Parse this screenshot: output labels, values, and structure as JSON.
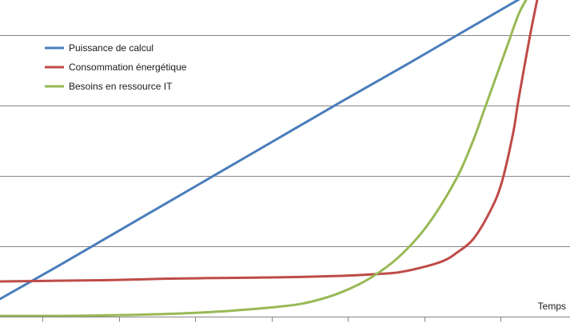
{
  "chart_data": {
    "type": "line",
    "title": "",
    "xlabel": "Temps",
    "ylabel": "",
    "grid": true,
    "legend": {
      "placement": "top-left",
      "entries": [
        {
          "name": "Puissance de calcul",
          "color": "#4a7ebb"
        },
        {
          "name": "Consommation énergétique",
          "color": "#be4b48"
        },
        {
          "name": "Besoins en ressource IT",
          "color": "#98b954"
        }
      ]
    },
    "xlim": [
      0,
      10
    ],
    "ylim": [
      0,
      4.5
    ],
    "x_tick_count": 10,
    "y_gridlines": [
      1,
      2,
      3,
      4
    ],
    "series": [
      {
        "name": "Puissance de calcul",
        "color": "#4a7ebb",
        "x": [
          0,
          1,
          2,
          3,
          4,
          5,
          6,
          7,
          8,
          9,
          9.3
        ],
        "y": [
          0.25,
          0.71,
          1.18,
          1.65,
          2.12,
          2.59,
          3.06,
          3.52,
          3.99,
          4.46,
          4.6
        ]
      },
      {
        "name": "Consommation énergétique",
        "color": "#be4b48",
        "x": [
          0,
          1,
          2,
          3,
          4,
          5,
          6,
          6.5,
          7,
          7.5,
          7.8,
          8,
          8.3,
          8.6,
          8.8,
          9,
          9.1,
          9.3,
          9.45
        ],
        "y": [
          0.5,
          0.51,
          0.52,
          0.54,
          0.55,
          0.56,
          0.58,
          0.6,
          0.63,
          0.72,
          0.8,
          0.9,
          1.1,
          1.5,
          1.9,
          2.6,
          3.1,
          4.0,
          4.6
        ]
      },
      {
        "name": "Besoins en ressource IT",
        "color": "#98b954",
        "x": [
          0,
          1,
          2,
          3,
          4,
          5,
          5.5,
          6,
          6.5,
          7,
          7.5,
          8,
          8.3,
          8.5,
          8.7,
          8.9,
          9.1,
          9.3
        ],
        "y": [
          0.01,
          0.01,
          0.02,
          0.04,
          0.08,
          0.15,
          0.22,
          0.35,
          0.55,
          0.85,
          1.3,
          1.95,
          2.5,
          2.95,
          3.4,
          3.85,
          4.3,
          4.6
        ]
      }
    ]
  }
}
